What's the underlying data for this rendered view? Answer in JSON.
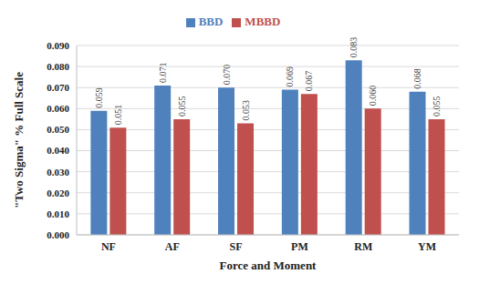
{
  "chart_data": {
    "type": "bar",
    "x_label": "Force and Moment",
    "y_label": "\"Two Sigma\" % Full Scale",
    "categories": [
      "NF",
      "AF",
      "SF",
      "PM",
      "RM",
      "YM"
    ],
    "series": [
      {
        "name": "BBD",
        "color": "#4f81bd",
        "values": [
          0.059,
          0.071,
          0.07,
          0.069,
          0.083,
          0.068
        ],
        "value_labels": [
          "0.059",
          "0.071",
          "0.070",
          "0.069",
          "0.083",
          "0.068"
        ]
      },
      {
        "name": "MBBD",
        "color": "#c0504d",
        "values": [
          0.051,
          0.055,
          0.053,
          0.067,
          0.06,
          0.055
        ],
        "value_labels": [
          "0.051",
          "0.055",
          "0.053",
          "0.067",
          "0.060",
          "0.055"
        ]
      }
    ],
    "ylim": [
      0,
      0.09
    ],
    "yticks": [
      {
        "value": 0,
        "label": "0.000"
      },
      {
        "value": 0.01,
        "label": "0.010"
      },
      {
        "value": 0.02,
        "label": "0.020"
      },
      {
        "value": 0.03,
        "label": "0.030"
      },
      {
        "value": 0.04,
        "label": "0.040"
      },
      {
        "value": 0.05,
        "label": "0.050"
      },
      {
        "value": 0.06,
        "label": "0.060"
      },
      {
        "value": 0.07,
        "label": "0.070"
      },
      {
        "value": 0.08,
        "label": "0.080"
      },
      {
        "value": 0.09,
        "label": "0.090"
      }
    ],
    "grid": true,
    "legend": "top",
    "data_labels": true
  }
}
